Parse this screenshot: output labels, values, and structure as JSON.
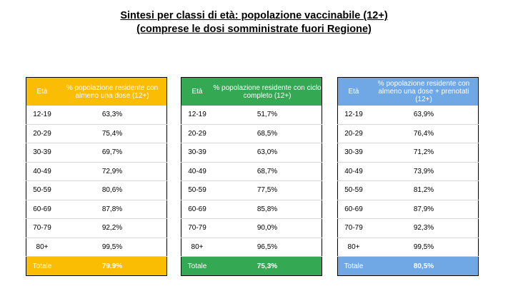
{
  "title": {
    "line1": "Sintesi per classi di età: popolazione vaccinabile (12+)",
    "line2": "(comprese le dosi somministrate fuori Regione)"
  },
  "colors": {
    "table_a": "#fbbc04",
    "table_b": "#34a853",
    "table_c": "#6fa8e5"
  },
  "tables": [
    {
      "col1_header": "Età",
      "col2_header": "% popolazione residente con almeno una dose (12+)",
      "rows": [
        {
          "age": "12-19",
          "value": "63,3%"
        },
        {
          "age": "20-29",
          "value": "75,4%"
        },
        {
          "age": "30-39",
          "value": "69,7%"
        },
        {
          "age": "40-49",
          "value": "72,9%"
        },
        {
          "age": "50-59",
          "value": "80,6%"
        },
        {
          "age": "60-69",
          "value": "87,8%"
        },
        {
          "age": "70-79",
          "value": "92,2%"
        },
        {
          "age": "80+",
          "value": "99,5%"
        }
      ],
      "total_label": "Totale",
      "total_value": "79,9%"
    },
    {
      "col1_header": "Età",
      "col2_header": "% popolazione residente con ciclo completo (12+)",
      "rows": [
        {
          "age": "12-19",
          "value": "51,7%"
        },
        {
          "age": "20-29",
          "value": "68,5%"
        },
        {
          "age": "30-39",
          "value": "63,0%"
        },
        {
          "age": "40-49",
          "value": "68,7%"
        },
        {
          "age": "50-59",
          "value": "77,5%"
        },
        {
          "age": "60-69",
          "value": "85,8%"
        },
        {
          "age": "70-79",
          "value": "90,0%"
        },
        {
          "age": "80+",
          "value": "96,5%"
        }
      ],
      "total_label": "Totale",
      "total_value": "75,3%"
    },
    {
      "col1_header": "Età",
      "col2_header": "% popolazione residente con almeno una dose + prenotati (12+)",
      "rows": [
        {
          "age": "12-19",
          "value": "63,9%"
        },
        {
          "age": "20-29",
          "value": "76,4%"
        },
        {
          "age": "30-39",
          "value": "71,2%"
        },
        {
          "age": "40-49",
          "value": "73,9%"
        },
        {
          "age": "50-59",
          "value": "81,2%"
        },
        {
          "age": "60-69",
          "value": "87,9%"
        },
        {
          "age": "70-79",
          "value": "92,3%"
        },
        {
          "age": "80+",
          "value": "99,5%"
        }
      ],
      "total_label": "Totale",
      "total_value": "80,5%"
    }
  ]
}
